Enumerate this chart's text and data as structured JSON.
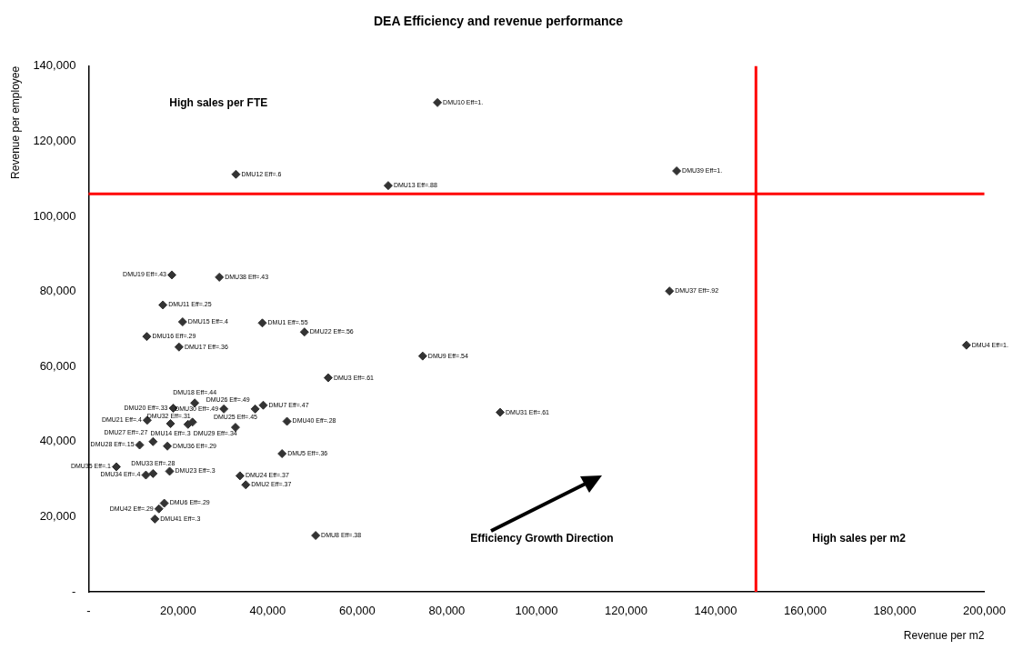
{
  "chart_data": {
    "type": "scatter",
    "title": "DEA Efficiency and revenue performance",
    "xlabel": "Revenue per m2",
    "ylabel": "Revenue per employee",
    "xlim": [
      0,
      200000
    ],
    "ylim": [
      0,
      140000
    ],
    "xticks": [
      {
        "value": 0,
        "label": "-"
      },
      {
        "value": 20000,
        "label": "20,000"
      },
      {
        "value": 40000,
        "label": "40,000"
      },
      {
        "value": 60000,
        "label": "60,000"
      },
      {
        "value": 80000,
        "label": "80,000"
      },
      {
        "value": 100000,
        "label": "100,000"
      },
      {
        "value": 120000,
        "label": "120,000"
      },
      {
        "value": 140000,
        "label": "140,000"
      },
      {
        "value": 160000,
        "label": "160,000"
      },
      {
        "value": 180000,
        "label": "180,000"
      },
      {
        "value": 200000,
        "label": "200,000"
      }
    ],
    "yticks": [
      {
        "value": 0,
        "label": "-"
      },
      {
        "value": 20000,
        "label": "20,000"
      },
      {
        "value": 40000,
        "label": "40,000"
      },
      {
        "value": 60000,
        "label": "60,000"
      },
      {
        "value": 80000,
        "label": "80,000"
      },
      {
        "value": 100000,
        "label": "100,000"
      },
      {
        "value": 120000,
        "label": "120,000"
      },
      {
        "value": 140000,
        "label": "140,000"
      }
    ],
    "grid": false,
    "legend": false,
    "marker": "diamond",
    "series": [
      {
        "color": "#333333",
        "x": [
          38800,
          35100,
          53500,
          196000,
          43200,
          16900,
          39000,
          50700,
          74600,
          77900,
          16600,
          32900,
          66900,
          18300,
          21000,
          13000,
          20200,
          23700,
          18600,
          18900,
          13100,
          48200,
          18100,
          33800,
          32800,
          37200,
          14400,
          11400,
          22200,
          30200,
          91900,
          23200,
          14400,
          12800,
          6200,
          17600,
          129700,
          29200,
          131300,
          44300,
          14800,
          15700
        ],
        "values": [
          71600,
          28500,
          57000,
          65700,
          36800,
          23600,
          49700,
          15000,
          62800,
          130300,
          76400,
          111200,
          108200,
          44800,
          71900,
          68000,
          65200,
          50300,
          84400,
          48900,
          45700,
          69200,
          32100,
          30900,
          43800,
          48700,
          40000,
          39100,
          44600,
          48700,
          47800,
          45200,
          31500,
          31100,
          33300,
          38800,
          80100,
          83800,
          112100,
          45400,
          19400,
          22100
        ],
        "value_labels": [
          "DMU1 Eff=.55",
          "DMU2 Eff=.37",
          "DMU3 Eff=.61",
          "DMU4 Eff=1.",
          "DMU5 Eff=.36",
          "DMU6 Eff=.29",
          "DMU7 Eff=.47",
          "DMU8 Eff=.38",
          "DMU9 Eff=.54",
          "DMU10 Eff=1.",
          "DMU11 Eff=.25",
          "DMU12 Eff=.6",
          "DMU13 Eff=.88",
          "DMU14 Eff=.3",
          "DMU15 Eff=.4",
          "DMU16 Eff=.29",
          "DMU17 Eff=.36",
          "DMU18 Eff=.44",
          "DMU19 Eff=.43",
          "DMU20 Eff=.33",
          "DMU21 Eff=.4",
          "DMU22 Eff=.56",
          "DMU23 Eff=.3",
          "DMU24 Eff=.37",
          "DMU25 Eff=.45",
          "DMU26 Eff=.49",
          "DMU27 Eff=.27",
          "DMU28 Eff=.15",
          "DMU29 Eff=.34",
          "DMU30 Eff=.49",
          "DMU31 Eff=.61",
          "DMU32 Eff=.31",
          "DMU33 Eff=.28",
          "DMU34 Eff=.4",
          "DMU35 Eff=.1",
          "DMU36 Eff=.29",
          "DMU37 Eff=.92",
          "DMU38 Eff=.43",
          "DMU39 Eff=1.",
          "DMU40 Eff=.28",
          "DMU41 Eff=.3",
          "DMU42 Eff=.29"
        ]
      }
    ],
    "ref_lines": [
      {
        "axis": "y",
        "value": 106000,
        "color": "#ff0000"
      },
      {
        "axis": "x",
        "value": 149000,
        "color": "#ff0000"
      }
    ],
    "annotations": [
      "High sales per FTE",
      "Efficiency Growth Direction",
      "High sales per m2"
    ]
  }
}
